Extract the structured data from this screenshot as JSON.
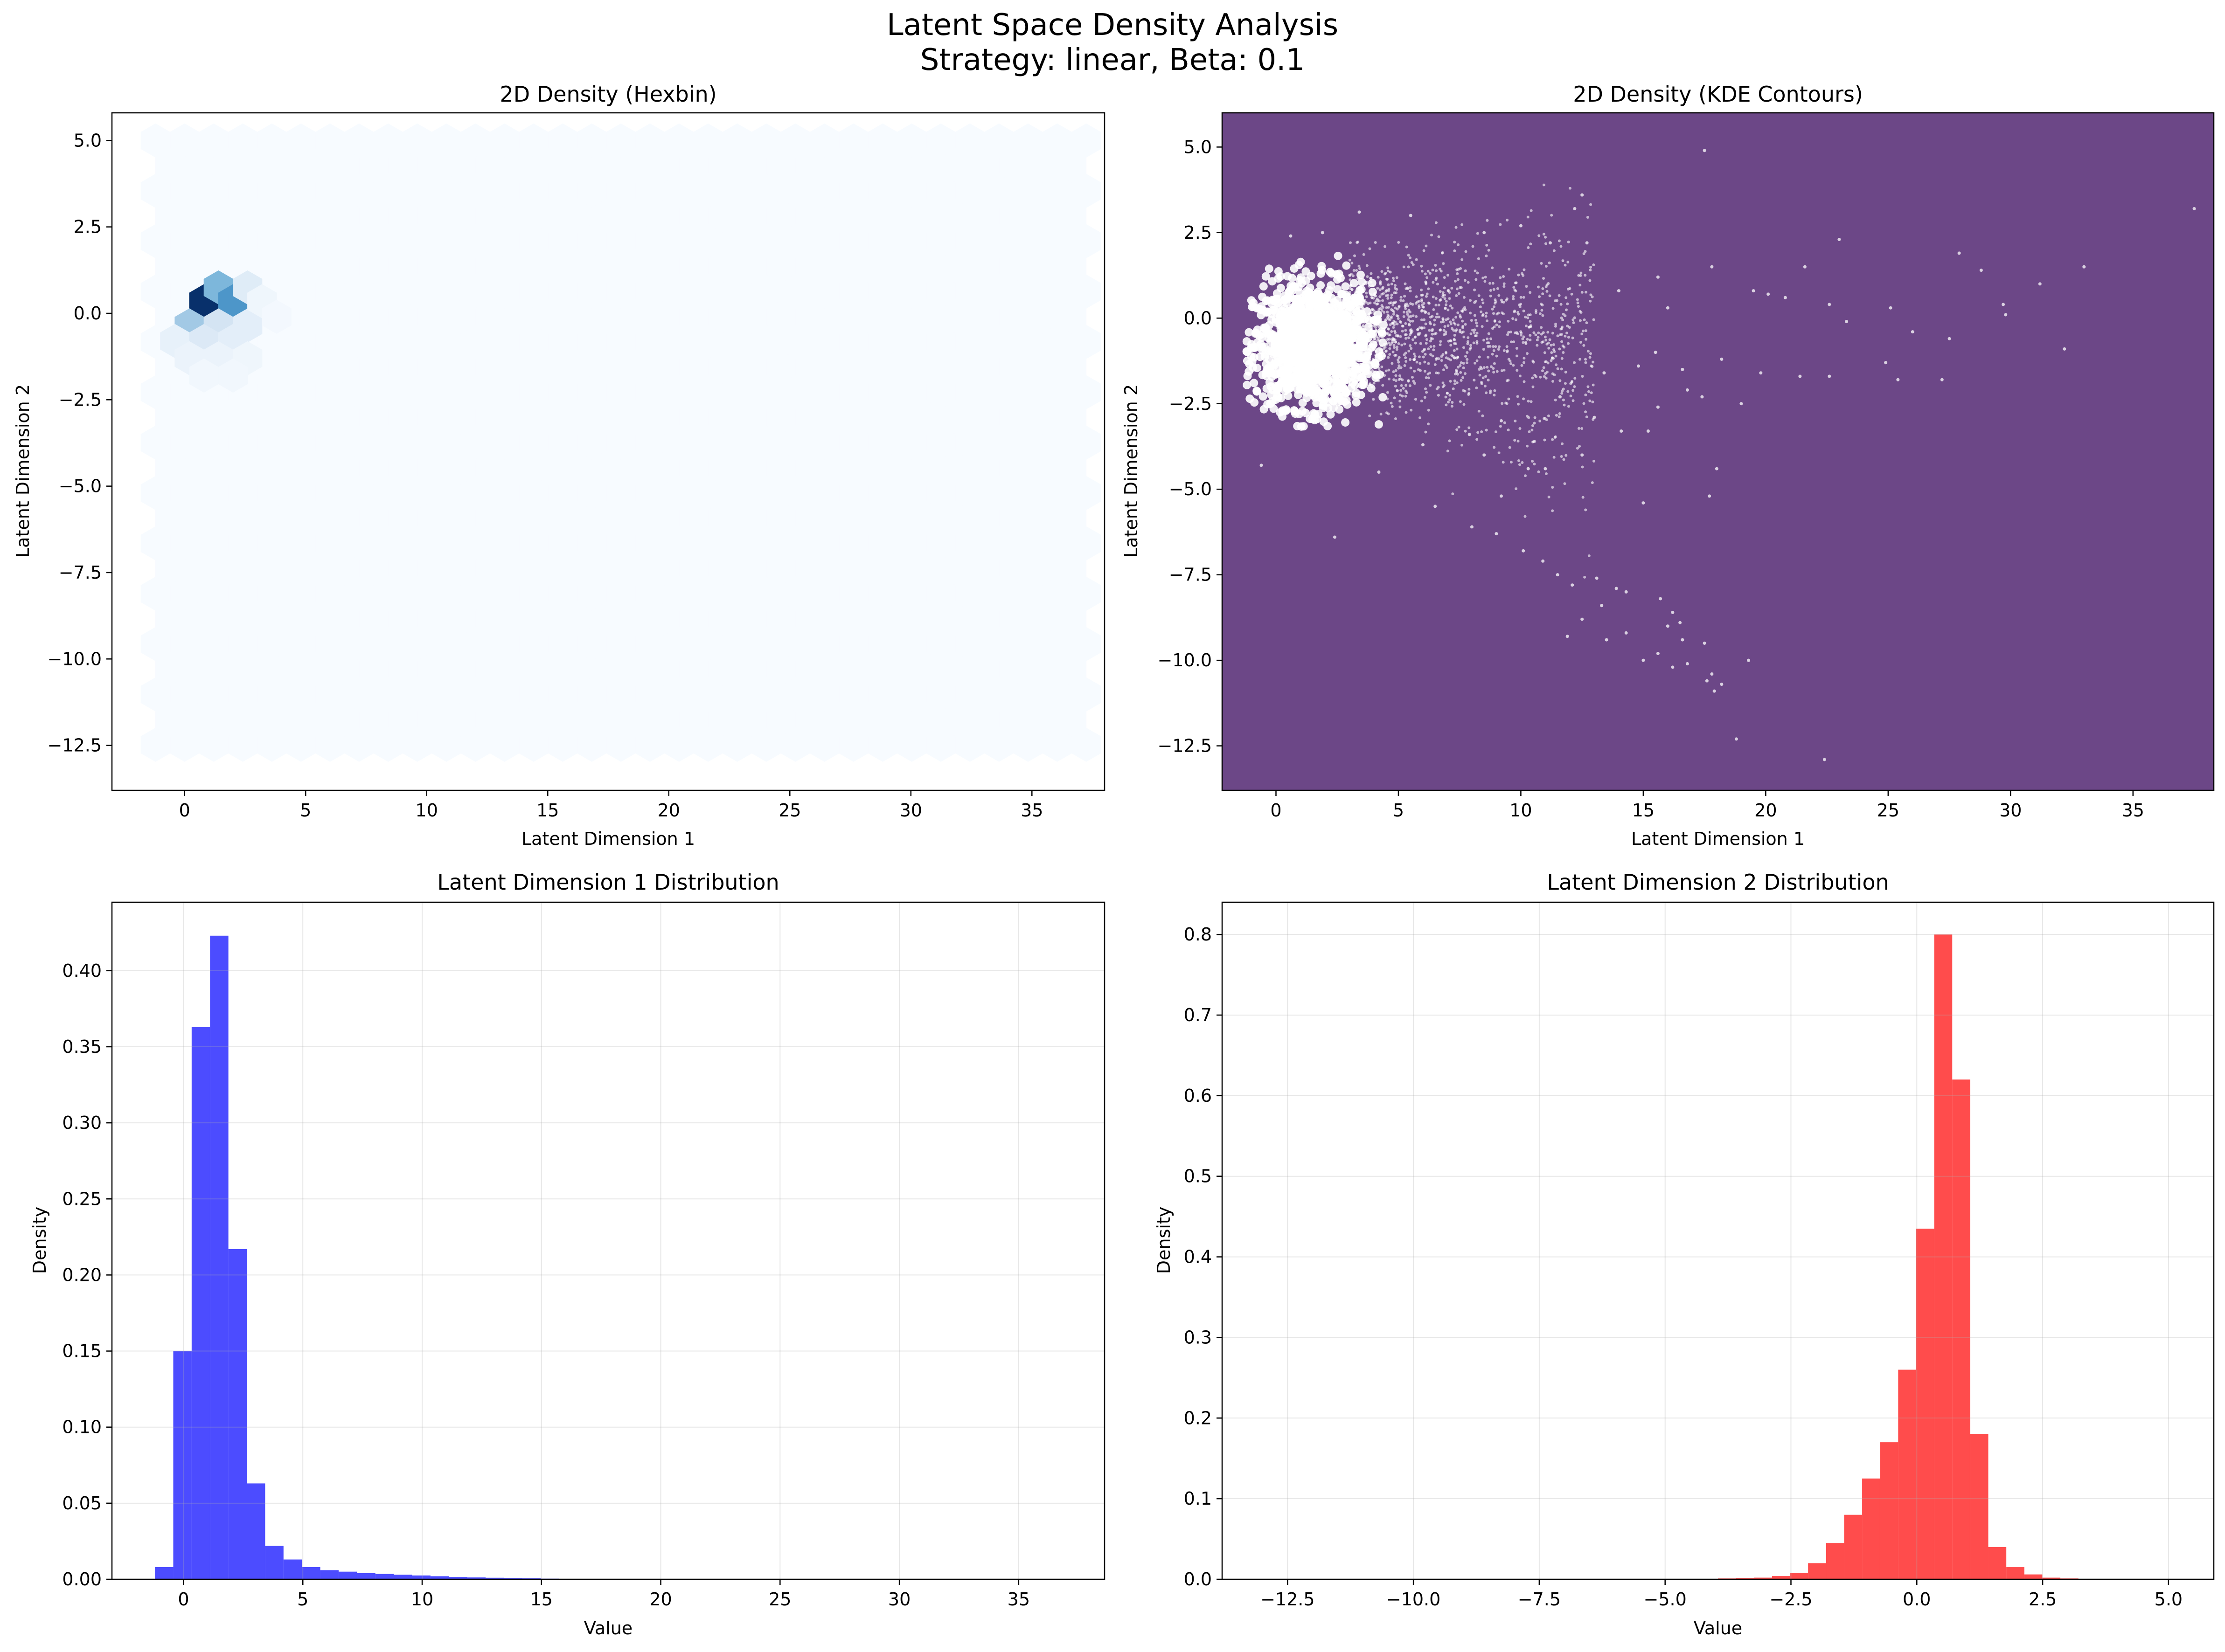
{
  "figure": {
    "title_line1": "Latent Space Density Analysis",
    "title_line2": "Strategy: linear, Beta: 0.1"
  },
  "chart_data": [
    {
      "type": "heatmap",
      "subtype": "hexbin",
      "title": "2D Density (Hexbin)",
      "xlabel": "Latent Dimension 1",
      "ylabel": "Latent Dimension 2",
      "xlim": [
        -3,
        38
      ],
      "ylim": [
        -13.8,
        5.8
      ],
      "xticks": [
        0,
        5,
        10,
        15,
        20,
        25,
        30,
        35
      ],
      "yticks": [
        -12.5,
        -10.0,
        -7.5,
        -5.0,
        -2.5,
        0.0,
        2.5,
        5.0
      ],
      "extent": {
        "x": [
          -1.2,
          37.5
        ],
        "y": [
          -12.9,
          5.0
        ]
      },
      "colormap": "Blues",
      "background_color": "#f7fbff",
      "dense_cells": [
        {
          "x": 0.8,
          "y": 0.35,
          "level": 1.0
        },
        {
          "x": 1.4,
          "y": 0.75,
          "level": 0.45
        },
        {
          "x": 2.0,
          "y": 0.35,
          "level": 0.6
        },
        {
          "x": 2.6,
          "y": 0.75,
          "level": 0.12
        },
        {
          "x": 0.2,
          "y": -0.35,
          "level": 0.35
        },
        {
          "x": 1.4,
          "y": -0.35,
          "level": 0.18
        },
        {
          "x": 2.6,
          "y": -0.35,
          "level": 0.1
        },
        {
          "x": -0.4,
          "y": -0.8,
          "level": 0.08
        },
        {
          "x": 0.8,
          "y": -0.8,
          "level": 0.14
        },
        {
          "x": 2.0,
          "y": -0.8,
          "level": 0.1
        },
        {
          "x": 0.2,
          "y": -1.3,
          "level": 0.06
        },
        {
          "x": 1.4,
          "y": -1.3,
          "level": 0.06
        },
        {
          "x": 2.6,
          "y": -1.3,
          "level": 0.04
        },
        {
          "x": 0.8,
          "y": -1.8,
          "level": 0.03
        },
        {
          "x": 2.0,
          "y": -1.8,
          "level": 0.03
        },
        {
          "x": 3.2,
          "y": 0.35,
          "level": 0.04
        },
        {
          "x": 3.8,
          "y": -0.1,
          "level": 0.02
        }
      ]
    },
    {
      "type": "scatter",
      "subtype": "kde_contours",
      "title": "2D Density (KDE Contours)",
      "xlabel": "Latent Dimension 1",
      "ylabel": "Latent Dimension 2",
      "xlim": [
        -2.2,
        38.3
      ],
      "ylim": [
        -13.8,
        6.0
      ],
      "xticks": [
        0,
        5,
        10,
        15,
        20,
        25,
        30,
        35
      ],
      "yticks": [
        -12.5,
        -10.0,
        -7.5,
        -5.0,
        -2.5,
        0.0,
        2.5,
        5.0
      ],
      "background_color": "#6c4787",
      "point_color": "#ffffff",
      "core_cluster": {
        "center": [
          1.5,
          -0.8
        ],
        "spread": [
          1.2,
          0.9
        ]
      },
      "points": [
        [
          17.5,
          4.9
        ],
        [
          37.5,
          3.2
        ],
        [
          12.5,
          3.6
        ],
        [
          12.2,
          3.2
        ],
        [
          10.0,
          2.7
        ],
        [
          27.9,
          1.9
        ],
        [
          33.0,
          1.5
        ],
        [
          31.2,
          1.0
        ],
        [
          17.8,
          1.5
        ],
        [
          19.5,
          0.8
        ],
        [
          20.1,
          0.7
        ],
        [
          22.6,
          0.4
        ],
        [
          25.1,
          0.3
        ],
        [
          29.8,
          0.1
        ],
        [
          32.2,
          -0.9
        ],
        [
          26.0,
          -0.4
        ],
        [
          27.5,
          -0.6
        ],
        [
          24.9,
          -1.3
        ],
        [
          21.4,
          -1.7
        ],
        [
          22.6,
          -1.7
        ],
        [
          25.4,
          -1.8
        ],
        [
          27.2,
          -1.8
        ],
        [
          19.8,
          -1.6
        ],
        [
          17.4,
          -2.3
        ],
        [
          15.6,
          -2.6
        ],
        [
          16.8,
          -2.1
        ],
        [
          18.2,
          -1.2
        ],
        [
          14.1,
          -3.3
        ],
        [
          13.0,
          -2.9
        ],
        [
          15.2,
          -3.3
        ],
        [
          17.7,
          -5.2
        ],
        [
          15.0,
          -5.4
        ],
        [
          10.3,
          -4.4
        ],
        [
          8.5,
          -4.0
        ],
        [
          9.2,
          -5.2
        ],
        [
          6.5,
          -5.5
        ],
        [
          2.4,
          -6.4
        ],
        [
          8.0,
          -6.1
        ],
        [
          9.0,
          -6.3
        ],
        [
          10.1,
          -6.8
        ],
        [
          10.9,
          -7.1
        ],
        [
          11.5,
          -7.5
        ],
        [
          12.1,
          -7.8
        ],
        [
          13.1,
          -7.6
        ],
        [
          13.9,
          -7.9
        ],
        [
          13.3,
          -8.4
        ],
        [
          14.3,
          -8.0
        ],
        [
          12.5,
          -8.8
        ],
        [
          15.7,
          -8.2
        ],
        [
          16.2,
          -8.6
        ],
        [
          16.0,
          -9.0
        ],
        [
          16.5,
          -8.9
        ],
        [
          14.3,
          -9.2
        ],
        [
          13.5,
          -9.4
        ],
        [
          11.9,
          -9.3
        ],
        [
          16.6,
          -9.4
        ],
        [
          15.6,
          -9.8
        ],
        [
          17.5,
          -9.5
        ],
        [
          15.0,
          -10.0
        ],
        [
          16.2,
          -10.2
        ],
        [
          17.8,
          -10.4
        ],
        [
          17.6,
          -10.6
        ],
        [
          18.2,
          -10.7
        ],
        [
          19.3,
          -10.0
        ],
        [
          17.9,
          -10.9
        ],
        [
          16.8,
          -10.1
        ],
        [
          22.4,
          -12.9
        ],
        [
          18.8,
          -12.3
        ],
        [
          11.0,
          -4.4
        ],
        [
          12.5,
          -4.0
        ],
        [
          7.9,
          -3.4
        ],
        [
          9.2,
          -3.0
        ],
        [
          6.0,
          -3.7
        ],
        [
          11.6,
          -2.3
        ],
        [
          13.4,
          -1.6
        ],
        [
          14.8,
          -1.4
        ],
        [
          15.5,
          -1.0
        ],
        [
          16.0,
          0.3
        ],
        [
          15.6,
          1.2
        ],
        [
          14.0,
          0.8
        ],
        [
          12.7,
          2.2
        ],
        [
          11.2,
          2.2
        ],
        [
          8.5,
          2.5
        ],
        [
          5.5,
          3.0
        ],
        [
          3.4,
          3.1
        ],
        [
          1.9,
          2.5
        ],
        [
          0.6,
          2.4
        ],
        [
          -0.6,
          -4.3
        ],
        [
          4.2,
          -4.5
        ],
        [
          18.0,
          -4.4
        ],
        [
          16.6,
          -1.5
        ],
        [
          20.8,
          0.6
        ],
        [
          23.3,
          -0.1
        ],
        [
          19.0,
          -2.5
        ],
        [
          21.6,
          1.5
        ],
        [
          23.0,
          2.3
        ],
        [
          28.8,
          1.4
        ],
        [
          29.7,
          0.4
        ]
      ]
    },
    {
      "type": "bar",
      "subtype": "histogram",
      "title": "Latent Dimension 1 Distribution",
      "xlabel": "Value",
      "ylabel": "Density",
      "xlim": [
        -3,
        38.6
      ],
      "ylim": [
        0,
        0.445
      ],
      "xticks": [
        0,
        5,
        10,
        15,
        20,
        25,
        30,
        35
      ],
      "yticks": [
        0.0,
        0.05,
        0.1,
        0.15,
        0.2,
        0.25,
        0.3,
        0.35,
        0.4
      ],
      "bin_start": -1.2,
      "bin_width": 0.77,
      "color": "#0000ff",
      "values": [
        0.008,
        0.15,
        0.363,
        0.423,
        0.217,
        0.063,
        0.022,
        0.013,
        0.008,
        0.006,
        0.005,
        0.004,
        0.0035,
        0.003,
        0.0025,
        0.002,
        0.0015,
        0.0012,
        0.001,
        0.0008,
        0.0006,
        0.0004,
        0.0003,
        0.0002,
        0.0002,
        0.0001,
        0.0001,
        0.0001,
        0.0001,
        5e-05,
        5e-05,
        5e-05,
        5e-05,
        5e-05,
        5e-05,
        5e-05,
        5e-05,
        5e-05,
        5e-05,
        5e-05,
        5e-05,
        5e-05,
        5e-05,
        5e-05,
        5e-05,
        5e-05,
        5e-05,
        5e-05,
        5e-05,
        5e-05
      ]
    },
    {
      "type": "bar",
      "subtype": "histogram",
      "title": "Latent Dimension 2 Distribution",
      "xlabel": "Value",
      "ylabel": "Density",
      "xlim": [
        -13.8,
        5.9
      ],
      "ylim": [
        0,
        0.84
      ],
      "xticks": [
        -12.5,
        -10.0,
        -7.5,
        -5.0,
        -2.5,
        0.0,
        2.5,
        5.0
      ],
      "yticks": [
        0.0,
        0.1,
        0.2,
        0.3,
        0.4,
        0.5,
        0.6,
        0.7,
        0.8
      ],
      "bin_start": -12.9,
      "bin_width": 0.358,
      "color": "#ff0000",
      "values": [
        0,
        0,
        0,
        0,
        0,
        0,
        0,
        0,
        0,
        0,
        0,
        0,
        0,
        0,
        0,
        0,
        0,
        0,
        0,
        0,
        0,
        0,
        0,
        0,
        0.0005,
        0.001,
        0.0015,
        0.002,
        0.004,
        0.008,
        0.02,
        0.045,
        0.08,
        0.125,
        0.17,
        0.26,
        0.435,
        0.8,
        0.62,
        0.18,
        0.04,
        0.015,
        0.006,
        0.002,
        0.001,
        0.0005,
        0.0005,
        0.0003,
        0.0002,
        0.0002
      ]
    }
  ]
}
